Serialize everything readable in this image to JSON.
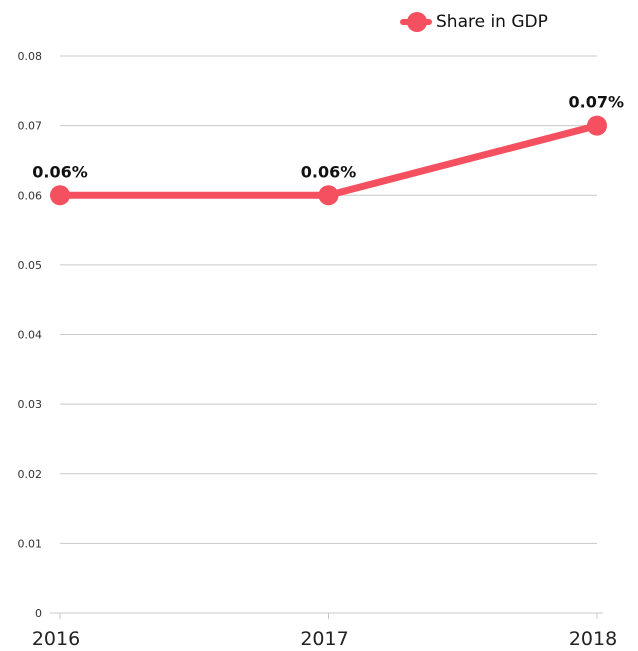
{
  "chart_data": {
    "type": "line",
    "categories": [
      "2016",
      "2017",
      "2018"
    ],
    "series": [
      {
        "name": "Share in GDP",
        "values": [
          0.06,
          0.06,
          0.07
        ],
        "labels": [
          "0.06%",
          "0.06%",
          "0.07%"
        ],
        "color": "#f5505f"
      }
    ],
    "ylim": [
      0,
      0.08
    ],
    "yticks": [
      "0",
      "0.01",
      "0.02",
      "0.03",
      "0.04",
      "0.05",
      "0.06",
      "0.07",
      "0.08"
    ],
    "grid": true,
    "legend_position": "top-right",
    "title": "",
    "xlabel": "",
    "ylabel": ""
  }
}
